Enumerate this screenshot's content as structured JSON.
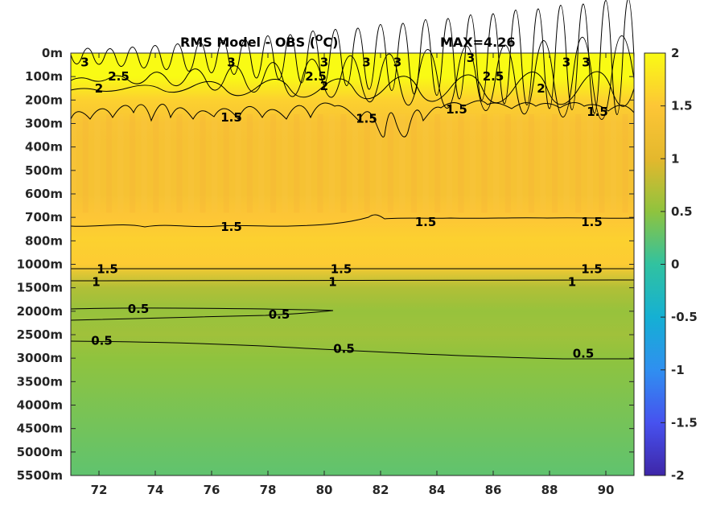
{
  "chart_data": {
    "type": "heatmap",
    "title": "RMS Model - OBS (",
    "title_unit_sup": "O",
    "title_unit_end": "C)",
    "max_label": "MAX=4.26",
    "x_ticks": [
      "72",
      "74",
      "76",
      "78",
      "80",
      "82",
      "84",
      "86",
      "88",
      "90"
    ],
    "x_values": [
      72,
      74,
      76,
      78,
      80,
      82,
      84,
      86,
      88,
      90
    ],
    "xlim": [
      71,
      91
    ],
    "y_ticks": [
      "0m",
      "100m",
      "200m",
      "300m",
      "400m",
      "500m",
      "600m",
      "700m",
      "800m",
      "1000m",
      "1500m",
      "2000m",
      "2500m",
      "3000m",
      "3500m",
      "4000m",
      "4500m",
      "5000m",
      "5500m"
    ],
    "colorbar_ticks": [
      "2",
      "1.5",
      "1",
      "0.5",
      "0",
      "-0.5",
      "-1",
      "-1.5",
      "-2"
    ],
    "colorbar_values": [
      2,
      1.5,
      1,
      0.5,
      0,
      -0.5,
      -1,
      -1.5,
      -2
    ],
    "clim": [
      -2,
      2
    ],
    "colormap": [
      "#3e26a8",
      "#4752ef",
      "#2f8ff0",
      "#15b0d3",
      "#31c2a0",
      "#8fc33e",
      "#e4b82d",
      "#fdc636",
      "#f9fb14"
    ],
    "depth_profile": [
      {
        "depth": "0m",
        "value": 2.0
      },
      {
        "depth": "100m",
        "value": 2.0
      },
      {
        "depth": "200m",
        "value": 1.6
      },
      {
        "depth": "300m",
        "value": 1.4
      },
      {
        "depth": "400m",
        "value": 1.35
      },
      {
        "depth": "500m",
        "value": 1.35
      },
      {
        "depth": "600m",
        "value": 1.35
      },
      {
        "depth": "700m",
        "value": 1.5
      },
      {
        "depth": "800m",
        "value": 1.6
      },
      {
        "depth": "1000m",
        "value": 1.55
      },
      {
        "depth": "1500m",
        "value": 0.7
      },
      {
        "depth": "2000m",
        "value": 0.55
      },
      {
        "depth": "2500m",
        "value": 0.6
      },
      {
        "depth": "3000m",
        "value": 0.5
      },
      {
        "depth": "3500m",
        "value": 0.45
      },
      {
        "depth": "4000m",
        "value": 0.4
      },
      {
        "depth": "4500m",
        "value": 0.35
      },
      {
        "depth": "5000m",
        "value": 0.3
      },
      {
        "depth": "5500m",
        "value": 0.25
      }
    ],
    "contour_labels": [
      {
        "text": "3",
        "x": 71.5,
        "depth_index": 0.4
      },
      {
        "text": "3",
        "x": 76.7,
        "depth_index": 0.4
      },
      {
        "text": "3",
        "x": 80.0,
        "depth_index": 0.4
      },
      {
        "text": "3",
        "x": 81.5,
        "depth_index": 0.4
      },
      {
        "text": "3",
        "x": 82.6,
        "depth_index": 0.4
      },
      {
        "text": "3",
        "x": 85.2,
        "depth_index": 0.2
      },
      {
        "text": "3",
        "x": 88.6,
        "depth_index": 0.4
      },
      {
        "text": "3",
        "x": 89.3,
        "depth_index": 0.4
      },
      {
        "text": "2.5",
        "x": 72.7,
        "depth_index": 1.0
      },
      {
        "text": "2.5",
        "x": 79.7,
        "depth_index": 1.0
      },
      {
        "text": "2.5",
        "x": 86.0,
        "depth_index": 1.0
      },
      {
        "text": "2",
        "x": 72.0,
        "depth_index": 1.5
      },
      {
        "text": "2",
        "x": 80.0,
        "depth_index": 1.4
      },
      {
        "text": "2",
        "x": 87.7,
        "depth_index": 1.5
      },
      {
        "text": "1.5",
        "x": 76.7,
        "depth_index": 2.75
      },
      {
        "text": "1.5",
        "x": 81.5,
        "depth_index": 2.8
      },
      {
        "text": "1.5",
        "x": 84.7,
        "depth_index": 2.4
      },
      {
        "text": "1.5",
        "x": 89.7,
        "depth_index": 2.5
      },
      {
        "text": "1.5",
        "x": 76.7,
        "depth_index": 7.4
      },
      {
        "text": "1.5",
        "x": 83.6,
        "depth_index": 7.2
      },
      {
        "text": "1.5",
        "x": 89.5,
        "depth_index": 7.2
      },
      {
        "text": "1.5",
        "x": 72.3,
        "depth_index": 9.2
      },
      {
        "text": "1.5",
        "x": 80.6,
        "depth_index": 9.2
      },
      {
        "text": "1.5",
        "x": 89.5,
        "depth_index": 9.2
      },
      {
        "text": "1",
        "x": 71.9,
        "depth_index": 9.75
      },
      {
        "text": "1",
        "x": 80.3,
        "depth_index": 9.75
      },
      {
        "text": "1",
        "x": 88.8,
        "depth_index": 9.75
      },
      {
        "text": "0.5",
        "x": 73.4,
        "depth_index": 10.9
      },
      {
        "text": "0.5",
        "x": 78.4,
        "depth_index": 11.15
      },
      {
        "text": "0.5",
        "x": 72.1,
        "depth_index": 12.25
      },
      {
        "text": "0.5",
        "x": 80.7,
        "depth_index": 12.6
      },
      {
        "text": "0.5",
        "x": 89.2,
        "depth_index": 12.8
      }
    ]
  }
}
